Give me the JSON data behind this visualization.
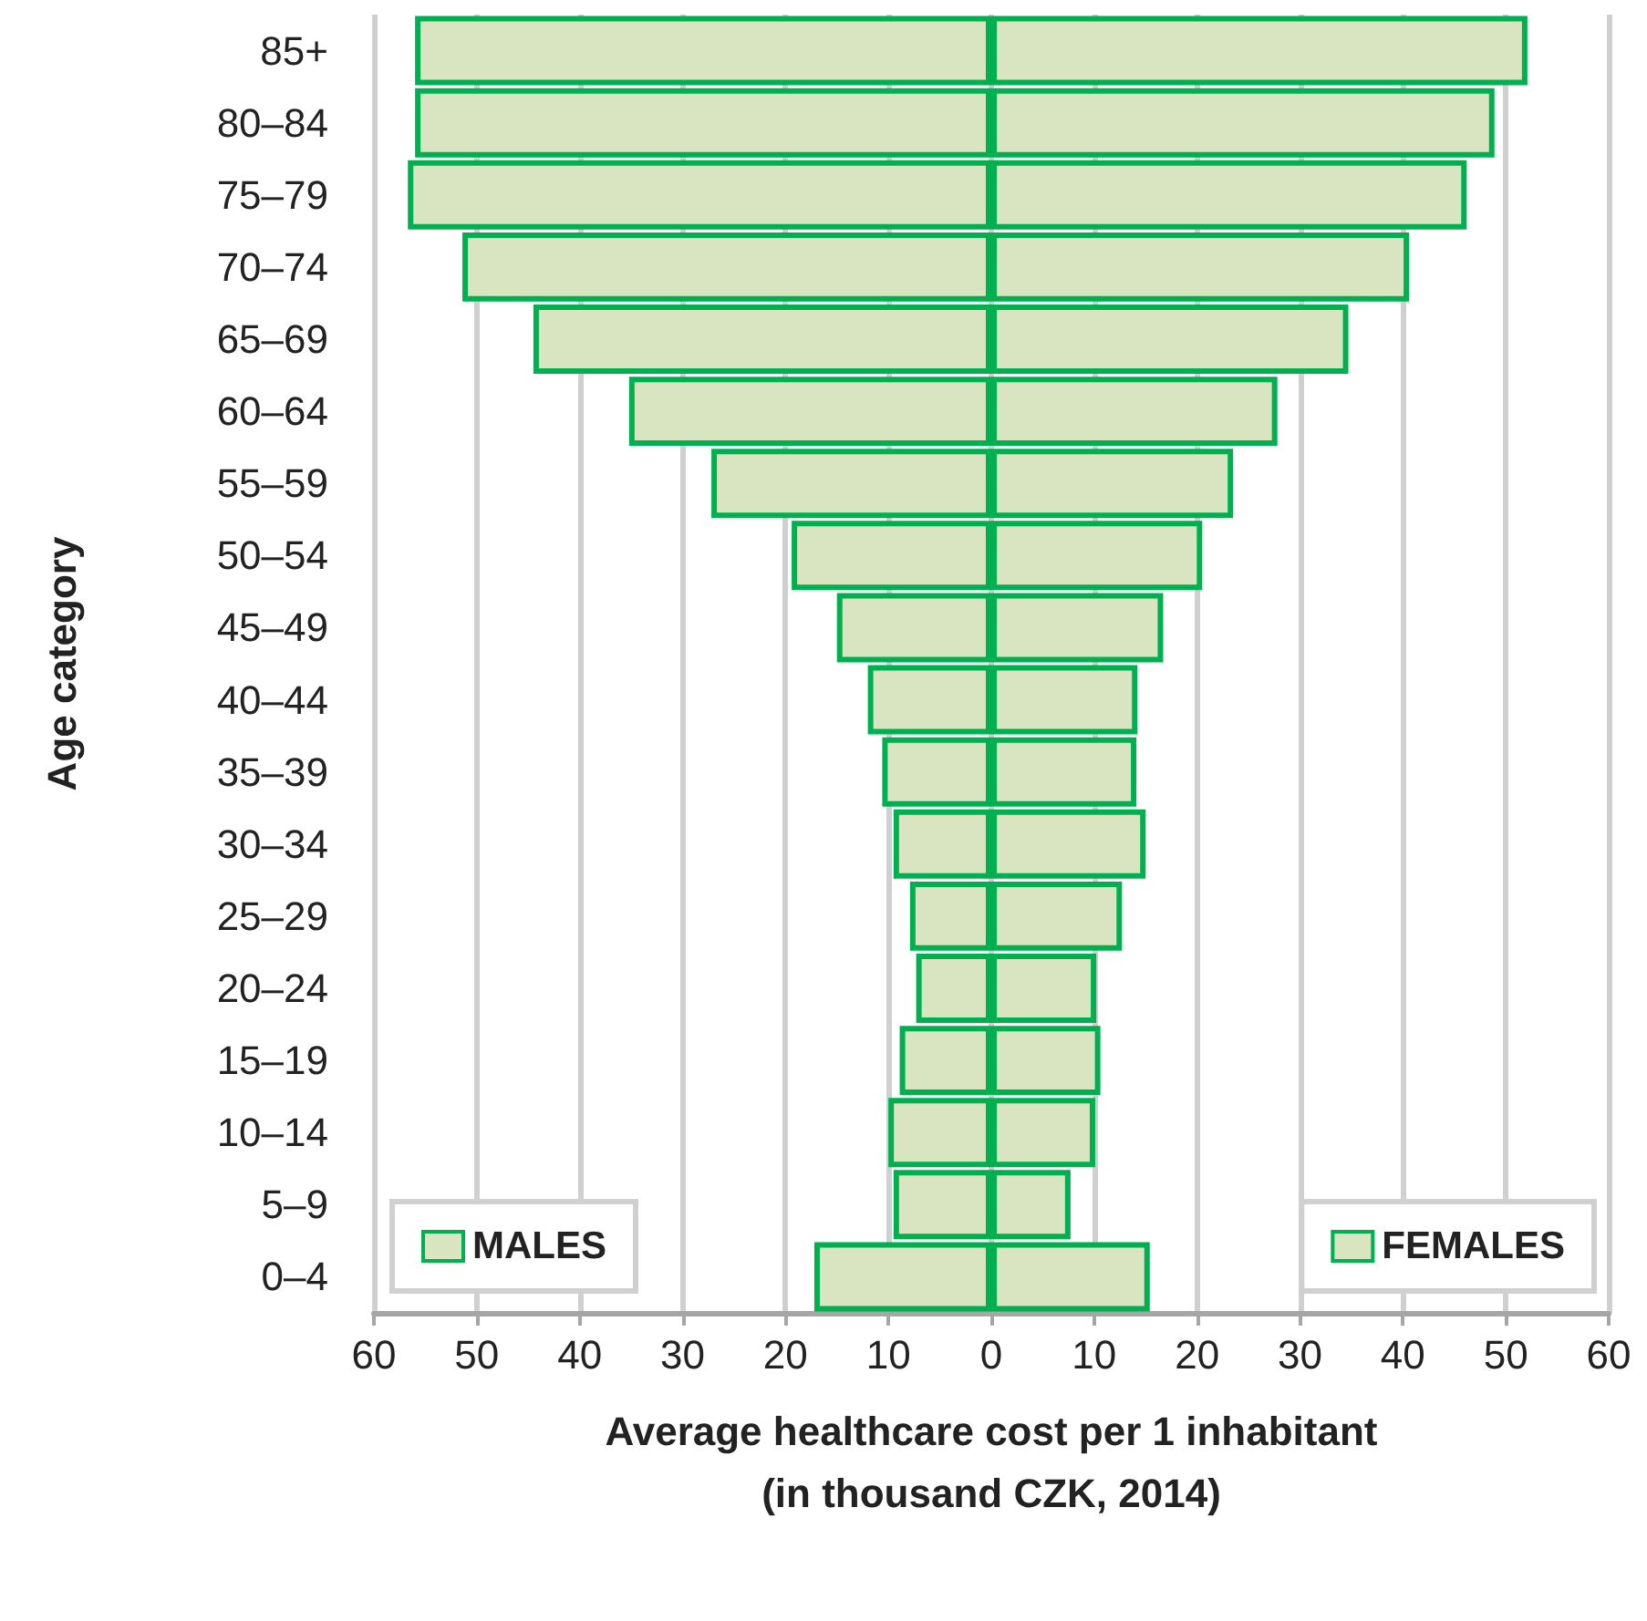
{
  "chart_data": {
    "type": "bar",
    "orientation": "horizontal",
    "stacked": true,
    "ylabel": "Age category",
    "xlabel": "Average healthcare cost per 1 inhabitant\n(in thousand CZK, 2014)",
    "categories": [
      "85+",
      "80–84",
      "75–79",
      "70–74",
      "65–69",
      "60–64",
      "55–59",
      "50–54",
      "45–49",
      "40–44",
      "35–39",
      "30–34",
      "25–29",
      "20–24",
      "15–19",
      "10–14",
      "5–9",
      "0–4"
    ],
    "series": [
      {
        "name": "MALES",
        "color": "#d9e4c0",
        "values": [
          -56.0,
          -56.0,
          -56.7,
          -51.4,
          -44.5,
          -35.2,
          -27.2,
          -19.4,
          -15.0,
          -12.0,
          -10.6,
          -9.5,
          -7.9,
          -7.3,
          -8.9,
          -10.0,
          -9.5,
          -17.2
        ]
      },
      {
        "name": "FEMALES",
        "color": "#d9e4c0",
        "values": [
          52.1,
          48.9,
          46.2,
          40.6,
          34.7,
          27.8,
          23.5,
          20.5,
          16.7,
          14.2,
          14.1,
          15.0,
          12.7,
          10.2,
          10.6,
          10.1,
          7.7,
          15.4
        ]
      }
    ],
    "xlim": [
      -60,
      60
    ],
    "xticks": [
      {
        "value": -60,
        "label": "60"
      },
      {
        "value": -50,
        "label": "50"
      },
      {
        "value": -40,
        "label": "40"
      },
      {
        "value": -30,
        "label": "30"
      },
      {
        "value": -20,
        "label": "20"
      },
      {
        "value": -10,
        "label": "10"
      },
      0,
      10,
      20,
      30,
      40,
      50,
      60
    ],
    "grid": "x",
    "legend": "bottom"
  }
}
